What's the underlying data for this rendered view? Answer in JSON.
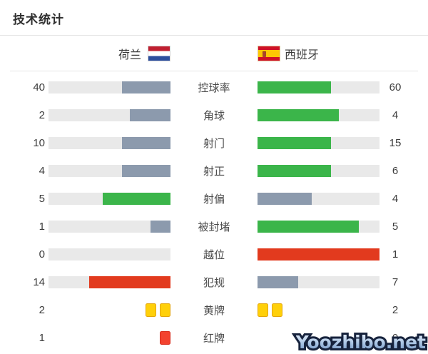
{
  "title": "技术统计",
  "teams": {
    "home": {
      "name": "荷兰",
      "flag": "netherlands-flag"
    },
    "away": {
      "name": "西班牙",
      "flag": "spain-flag"
    }
  },
  "palette": {
    "bar_background": "#e9e9e9",
    "gray_blue": "#8c9aad",
    "green": "#3bb54a",
    "red": "#e23a1e",
    "yellow_card": "#ffd00a",
    "yellow_card_border": "#e3a50b",
    "red_card": "#f3422f",
    "red_card_border": "#d92b1c"
  },
  "stats": [
    {
      "label": "控球率",
      "home": 40,
      "away": 60,
      "home_color": "#8c9aad",
      "away_color": "#3bb54a"
    },
    {
      "label": "角球",
      "home": 2,
      "away": 4,
      "home_color": "#8c9aad",
      "away_color": "#3bb54a"
    },
    {
      "label": "射门",
      "home": 10,
      "away": 15,
      "home_color": "#8c9aad",
      "away_color": "#3bb54a"
    },
    {
      "label": "射正",
      "home": 4,
      "away": 6,
      "home_color": "#8c9aad",
      "away_color": "#3bb54a"
    },
    {
      "label": "射偏",
      "home": 5,
      "away": 4,
      "home_color": "#3bb54a",
      "away_color": "#8c9aad"
    },
    {
      "label": "被封堵",
      "home": 1,
      "away": 5,
      "home_color": "#8c9aad",
      "away_color": "#3bb54a"
    },
    {
      "label": "越位",
      "home": 0,
      "away": 1,
      "home_color": "#8c9aad",
      "away_color": "#e23a1e"
    },
    {
      "label": "犯规",
      "home": 14,
      "away": 7,
      "home_color": "#e23a1e",
      "away_color": "#8c9aad"
    }
  ],
  "cards": [
    {
      "label": "黄牌",
      "home": 2,
      "away": 2,
      "type": "yellow"
    },
    {
      "label": "红牌",
      "home": 1,
      "away": 0,
      "type": "red"
    }
  ],
  "watermark": "Yoozhibo.net",
  "chart_data": {
    "type": "bar",
    "title": "技术统计",
    "orientation": "horizontal-paired",
    "categories": [
      "控球率",
      "角球",
      "射门",
      "射正",
      "射偏",
      "被封堵",
      "越位",
      "犯规",
      "黄牌",
      "红牌"
    ],
    "series": [
      {
        "name": "荷兰",
        "values": [
          40,
          2,
          10,
          4,
          5,
          1,
          0,
          14,
          2,
          1
        ]
      },
      {
        "name": "西班牙",
        "values": [
          60,
          4,
          15,
          6,
          4,
          5,
          1,
          7,
          2,
          0
        ]
      }
    ],
    "layout": "values at outer edges, paired bars anchored toward center labels, bar fill = value/(home+away), winner colored green, fouls/offside colored red, loser gray; cards drawn as yellow/red squares"
  }
}
